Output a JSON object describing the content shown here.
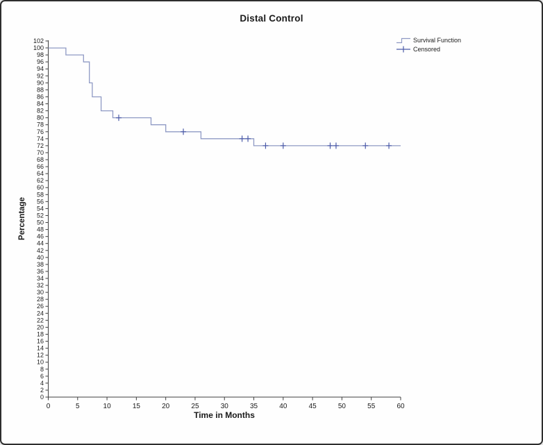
{
  "window": {
    "background": "#fefefe",
    "border_color": "#2e2e2e"
  },
  "chart_data": {
    "type": "line",
    "subtype": "kaplan-meier-step",
    "title": "Distal Control",
    "xlabel": "Time in Months",
    "ylabel": "Percentage",
    "xlim": [
      0,
      60
    ],
    "ylim": [
      0,
      102
    ],
    "x_ticks": [
      0,
      5,
      10,
      15,
      20,
      25,
      30,
      35,
      40,
      45,
      50,
      55,
      60
    ],
    "y_ticks": [
      0,
      2,
      4,
      6,
      8,
      10,
      12,
      14,
      16,
      18,
      20,
      22,
      24,
      26,
      28,
      30,
      32,
      34,
      36,
      38,
      40,
      42,
      44,
      46,
      48,
      50,
      52,
      54,
      56,
      58,
      60,
      62,
      64,
      66,
      68,
      70,
      72,
      74,
      76,
      78,
      80,
      82,
      84,
      86,
      88,
      90,
      92,
      94,
      96,
      98,
      100,
      102
    ],
    "grid": false,
    "axis_color": "#3f3f3f",
    "text_color": "#1a1a1a",
    "legend_position": "top-right",
    "legend": [
      {
        "label": "Survival Function",
        "marker": "step-line-icon",
        "color": "#8e99c4"
      },
      {
        "label": "Censored",
        "marker": "plus-icon",
        "color": "#4a5aa8"
      }
    ],
    "series": [
      {
        "name": "Survival Function",
        "color": "#8e99c4",
        "step_points": [
          [
            0,
            100
          ],
          [
            3,
            100
          ],
          [
            3,
            98
          ],
          [
            6,
            98
          ],
          [
            6,
            96
          ],
          [
            7,
            96
          ],
          [
            7,
            90
          ],
          [
            7.5,
            90
          ],
          [
            7.5,
            86
          ],
          [
            9,
            86
          ],
          [
            9,
            82
          ],
          [
            11,
            82
          ],
          [
            11,
            80
          ],
          [
            17.5,
            80
          ],
          [
            17.5,
            78
          ],
          [
            20,
            78
          ],
          [
            20,
            76
          ],
          [
            26,
            76
          ],
          [
            26,
            74
          ],
          [
            35,
            74
          ],
          [
            35,
            72
          ],
          [
            60,
            72
          ]
        ]
      }
    ],
    "censored_points": {
      "name": "Censored",
      "color": "#4a5aa8",
      "points": [
        [
          12,
          80
        ],
        [
          23,
          76
        ],
        [
          33,
          74
        ],
        [
          34,
          74
        ],
        [
          37,
          72
        ],
        [
          40,
          72
        ],
        [
          48,
          72
        ],
        [
          49,
          72
        ],
        [
          54,
          72
        ],
        [
          58,
          72
        ]
      ]
    }
  }
}
